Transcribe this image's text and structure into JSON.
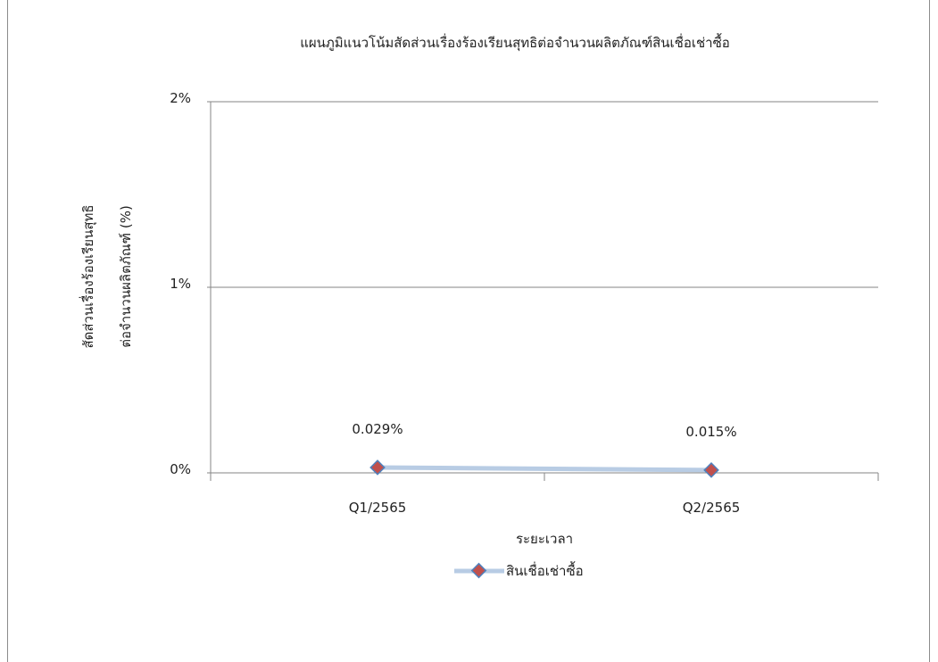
{
  "chart_data": {
    "type": "line",
    "title": "แผนภูมิแนวโน้มสัดส่วนเรื่องร้องเรียนสุทธิต่อจำนวนผลิตภัณฑ์สินเชื่อเช่าซื้อ",
    "categories": [
      "Q1/2565",
      "Q2/2565"
    ],
    "series": [
      {
        "name": "สินเชื่อเช่าซื้อ",
        "values": [
          0.029,
          0.015
        ],
        "data_labels": [
          "0.029%",
          "0.015%"
        ]
      }
    ],
    "ylim": [
      0,
      2
    ],
    "y_ticks": [
      {
        "value": 0,
        "label": "0%"
      },
      {
        "value": 1,
        "label": "1%"
      },
      {
        "value": 2,
        "label": "2%"
      }
    ],
    "xlabel": "ระยะเวลา",
    "ylabel_lines": [
      "สัดส่วนเรื่องร้องเรียนสุทธิ",
      "ต่อจำนวนผลิตภัณฑ์ (%)"
    ],
    "grid": true,
    "legend_position": "bottom",
    "colors": {
      "line": "#b8cce4",
      "marker_fill": "#c0504d",
      "marker_stroke": "#4f81bd",
      "grid": "#868686",
      "axis": "#868686"
    }
  }
}
